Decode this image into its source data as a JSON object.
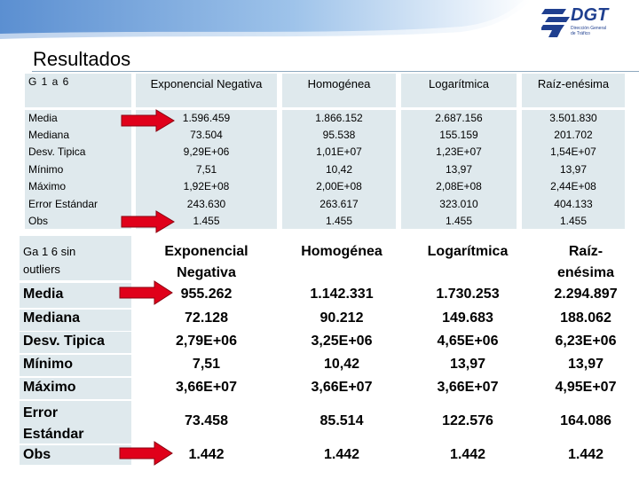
{
  "header": {
    "logo_text": "DGT",
    "logo_sub_1": "Dirección General",
    "logo_sub_2": "de Tráfico"
  },
  "title": "Resultados",
  "table1": {
    "group_label": "G 1 a 6",
    "columns": [
      "Exponencial Negativa",
      "Homogénea",
      "Logarítmica",
      "Raíz-enésima"
    ],
    "rows": [
      {
        "label": "Media",
        "values": [
          "1.596.459",
          "1.866.152",
          "2.687.156",
          "3.501.830"
        ]
      },
      {
        "label": "Mediana",
        "values": [
          "73.504",
          "95.538",
          "155.159",
          "201.702"
        ]
      },
      {
        "label": "Desv. Tipica",
        "values": [
          "9,29E+06",
          "1,01E+07",
          "1,23E+07",
          "1,54E+07"
        ]
      },
      {
        "label": "Mínimo",
        "values": [
          "7,51",
          "10,42",
          "13,97",
          "13,97"
        ]
      },
      {
        "label": "Máximo",
        "values": [
          "1,92E+08",
          "2,00E+08",
          "2,08E+08",
          "2,44E+08"
        ]
      },
      {
        "label": "Error Estándar",
        "values": [
          "243.630",
          "263.617",
          "323.010",
          "404.133"
        ]
      },
      {
        "label": "Obs",
        "values": [
          "1.455",
          "1.455",
          "1.455",
          "1.455"
        ]
      }
    ]
  },
  "table2": {
    "group_label_1": "Ga 1 6 sin",
    "group_label_2": "outliers",
    "columns": [
      {
        "l1": "Exponencial",
        "l2": "Negativa"
      },
      {
        "l1": "Homogénea",
        "l2": ""
      },
      {
        "l1": "Logarítmica",
        "l2": ""
      },
      {
        "l1": "Raíz-",
        "l2": "enésima"
      }
    ],
    "rows": [
      {
        "label": "Media",
        "values": [
          "955.262",
          "1.142.331",
          "1.730.253",
          "2.294.897"
        ]
      },
      {
        "label": "Mediana",
        "values": [
          "72.128",
          "90.212",
          "149.683",
          "188.062"
        ]
      },
      {
        "label": "Desv. Tipica",
        "values": [
          "2,79E+06",
          "3,25E+06",
          "4,65E+06",
          "6,23E+06"
        ]
      },
      {
        "label": "Mínimo",
        "values": [
          "7,51",
          "10,42",
          "13,97",
          "13,97"
        ]
      },
      {
        "label": "Máximo",
        "values": [
          "3,66E+07",
          "3,66E+07",
          "3,66E+07",
          "4,95E+07"
        ]
      },
      {
        "label_1": "Error",
        "label_2": "Estándar",
        "values": [
          "73.458",
          "85.514",
          "122.576",
          "164.086"
        ]
      },
      {
        "label": "Obs",
        "values": [
          "1.442",
          "1.442",
          "1.442",
          "1.442"
        ]
      }
    ]
  },
  "colors": {
    "cell_bg": "#dfe9ed",
    "arrow_fill": "#e0001a",
    "header_blue": "#1f3f8f"
  }
}
